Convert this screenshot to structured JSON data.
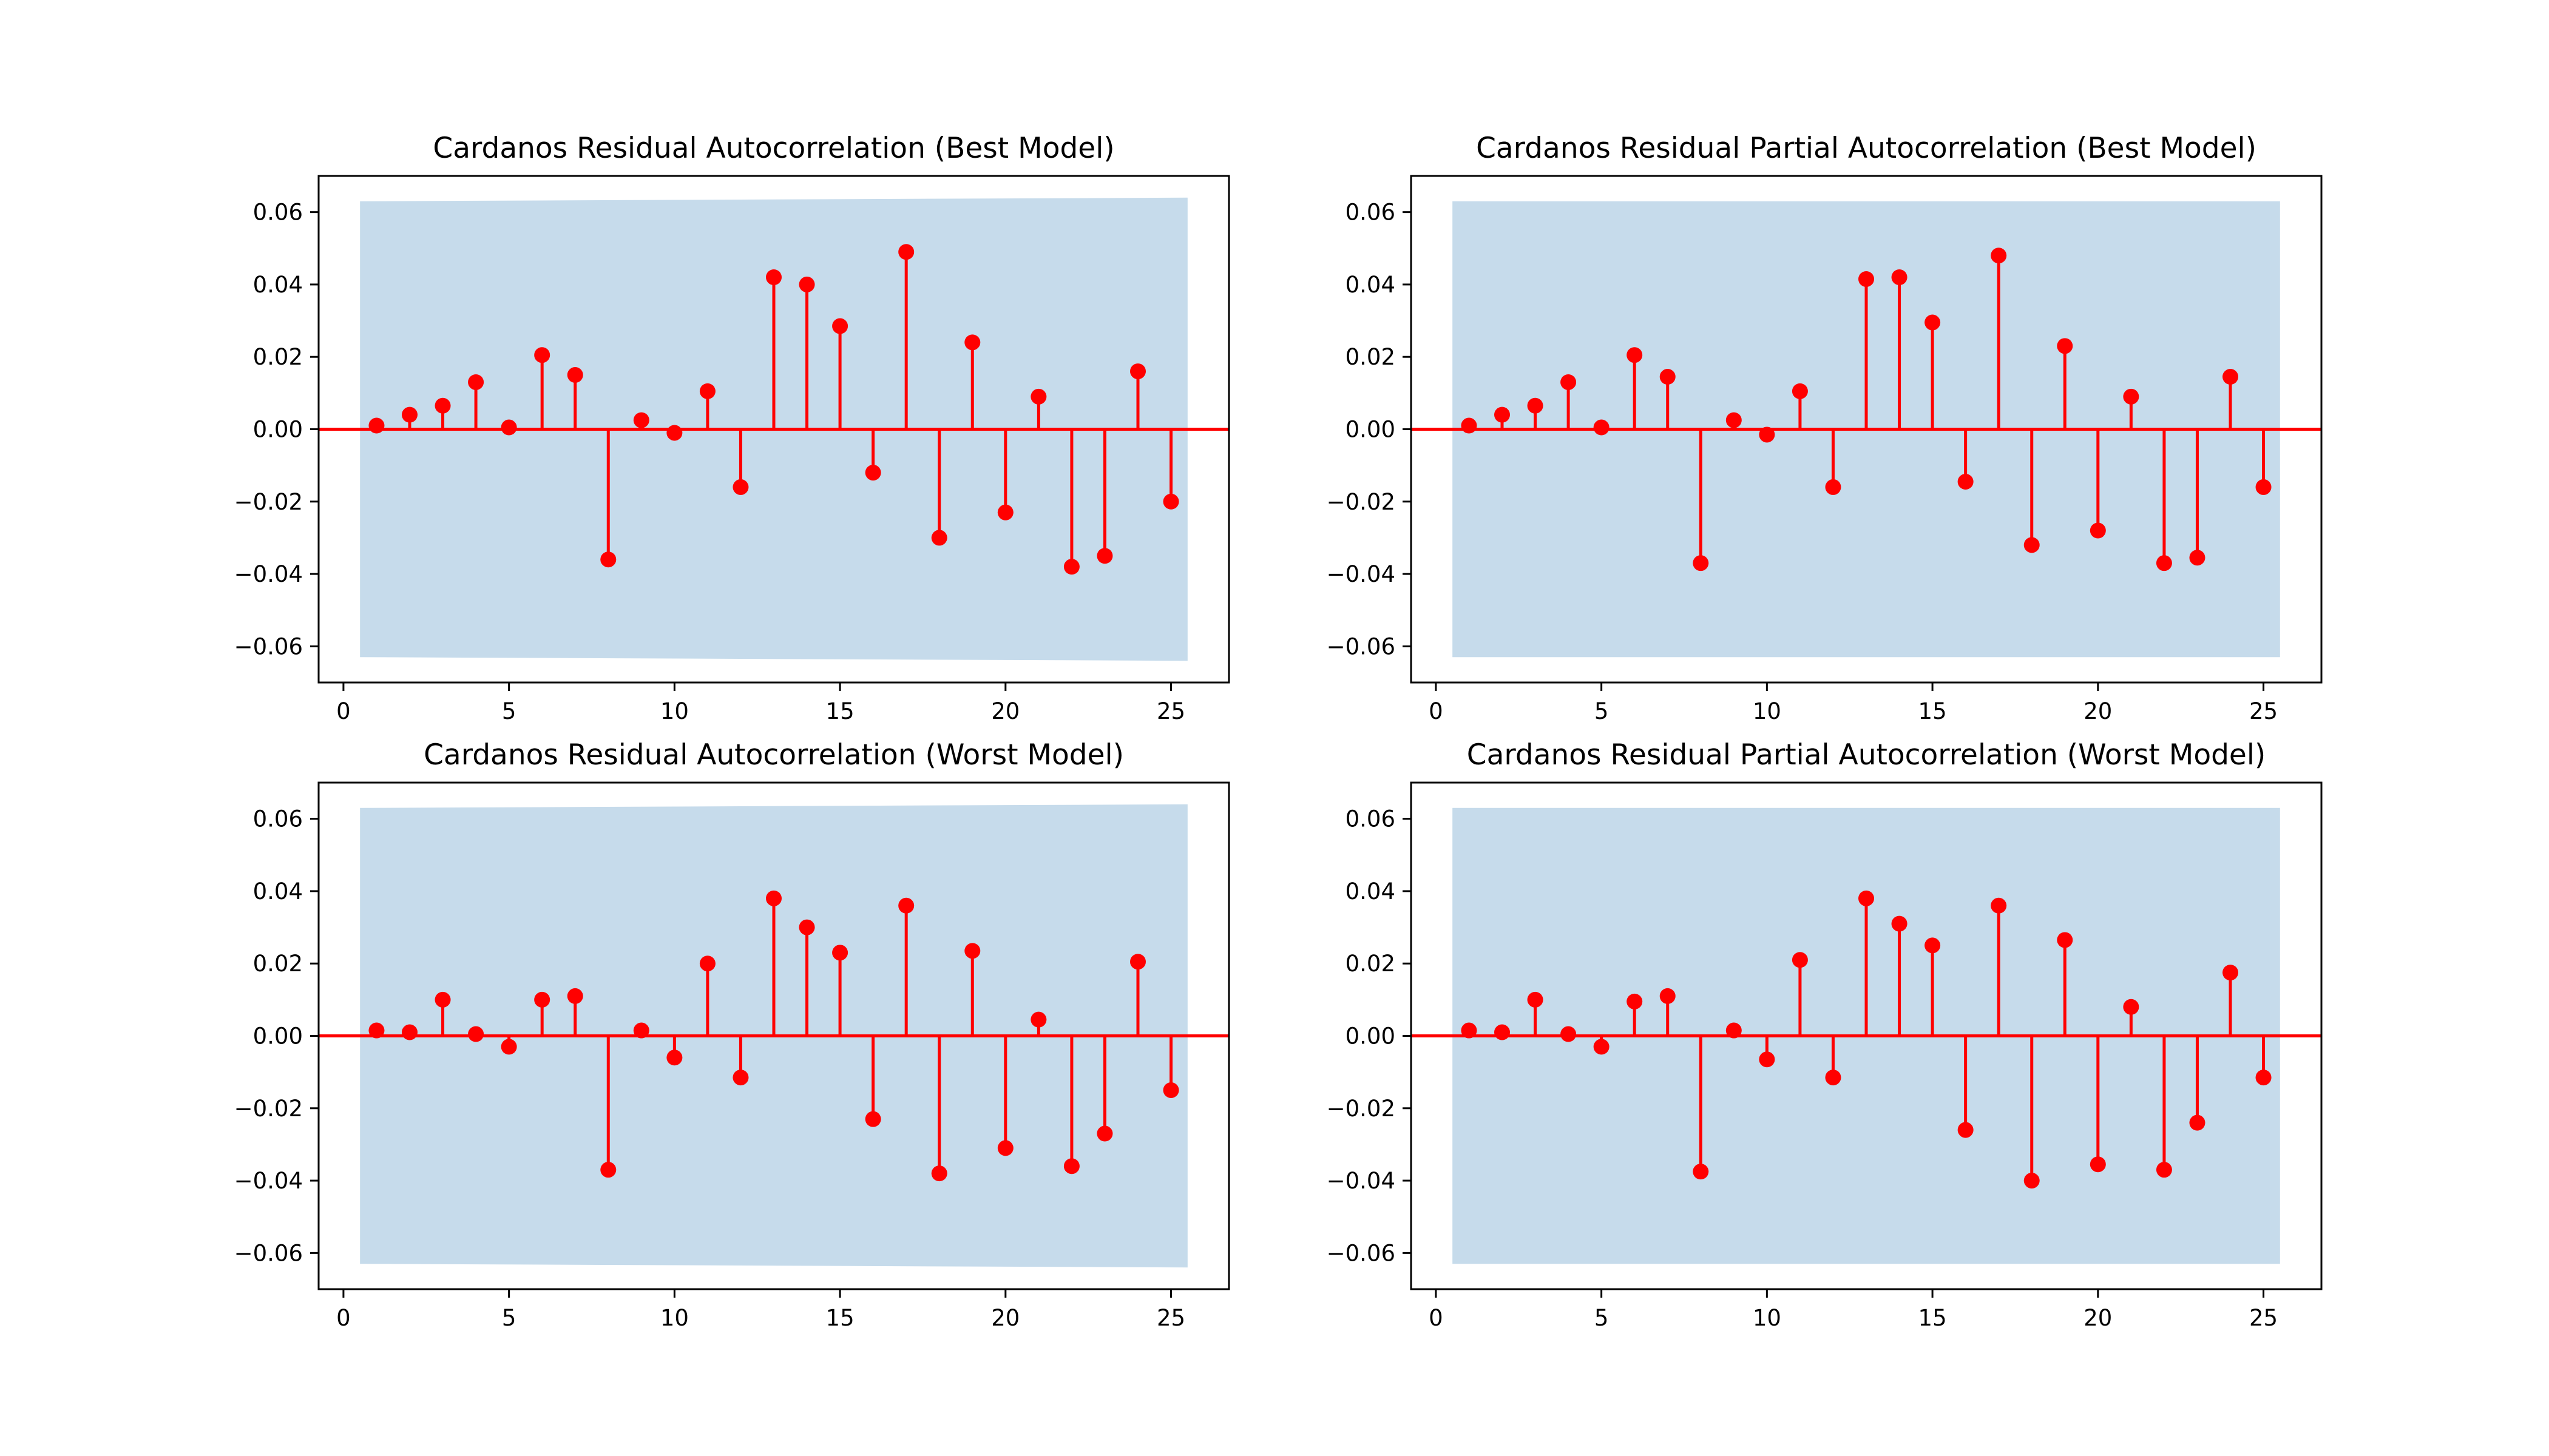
{
  "colors": {
    "stem": "#ff0000",
    "band": "#c6dbeb",
    "axis": "#000000"
  },
  "chart_data": [
    {
      "type": "stem",
      "title": "Cardanos Residual Autocorrelation (Best Model)",
      "xlim": [
        -0.75,
        26.75
      ],
      "ylim": [
        -0.07,
        0.07
      ],
      "xticks": [
        0,
        5,
        10,
        15,
        20,
        25
      ],
      "yticks": [
        0.06,
        0.04,
        0.02,
        0.0,
        -0.02,
        -0.04,
        -0.06
      ],
      "xtick_labels": [
        "0",
        "5",
        "10",
        "15",
        "20",
        "25"
      ],
      "ytick_labels": [
        "0.06",
        "0.04",
        "0.02",
        "0.00",
        "−0.02",
        "−0.04",
        "−0.06"
      ],
      "confidence_band": {
        "x": [
          0.5,
          25.5
        ],
        "lower": [
          -0.063,
          -0.064
        ],
        "upper": [
          0.063,
          0.064
        ]
      },
      "lags": [
        1,
        2,
        3,
        4,
        5,
        6,
        7,
        8,
        9,
        10,
        11,
        12,
        13,
        14,
        15,
        16,
        17,
        18,
        19,
        20,
        21,
        22,
        23,
        24,
        25
      ],
      "values": [
        0.001,
        0.004,
        0.0065,
        0.013,
        0.0005,
        0.0205,
        0.015,
        -0.036,
        0.0025,
        -0.001,
        0.0105,
        -0.016,
        0.042,
        0.04,
        0.0285,
        -0.012,
        0.049,
        -0.03,
        0.024,
        -0.023,
        0.009,
        -0.038,
        -0.035,
        0.016,
        -0.02
      ]
    },
    {
      "type": "stem",
      "title": "Cardanos Residual Partial Autocorrelation (Best Model)",
      "xlim": [
        -0.75,
        26.75
      ],
      "ylim": [
        -0.07,
        0.07
      ],
      "xticks": [
        0,
        5,
        10,
        15,
        20,
        25
      ],
      "yticks": [
        0.06,
        0.04,
        0.02,
        0.0,
        -0.02,
        -0.04,
        -0.06
      ],
      "xtick_labels": [
        "0",
        "5",
        "10",
        "15",
        "20",
        "25"
      ],
      "ytick_labels": [
        "0.06",
        "0.04",
        "0.02",
        "0.00",
        "−0.02",
        "−0.04",
        "−0.06"
      ],
      "confidence_band": {
        "x": [
          0.5,
          25.5
        ],
        "lower": [
          -0.063,
          -0.063
        ],
        "upper": [
          0.063,
          0.063
        ]
      },
      "lags": [
        1,
        2,
        3,
        4,
        5,
        6,
        7,
        8,
        9,
        10,
        11,
        12,
        13,
        14,
        15,
        16,
        17,
        18,
        19,
        20,
        21,
        22,
        23,
        24,
        25
      ],
      "values": [
        0.001,
        0.004,
        0.0065,
        0.013,
        0.0005,
        0.0205,
        0.0145,
        -0.037,
        0.0025,
        -0.0015,
        0.0105,
        -0.016,
        0.0415,
        0.042,
        0.0295,
        -0.0145,
        0.048,
        -0.032,
        0.023,
        -0.028,
        0.009,
        -0.037,
        -0.0355,
        0.0145,
        -0.016
      ]
    },
    {
      "type": "stem",
      "title": "Cardanos Residual Autocorrelation (Worst Model)",
      "xlim": [
        -0.75,
        26.75
      ],
      "ylim": [
        -0.07,
        0.07
      ],
      "xticks": [
        0,
        5,
        10,
        15,
        20,
        25
      ],
      "yticks": [
        0.06,
        0.04,
        0.02,
        0.0,
        -0.02,
        -0.04,
        -0.06
      ],
      "xtick_labels": [
        "0",
        "5",
        "10",
        "15",
        "20",
        "25"
      ],
      "ytick_labels": [
        "0.06",
        "0.04",
        "0.02",
        "0.00",
        "−0.02",
        "−0.04",
        "−0.06"
      ],
      "confidence_band": {
        "x": [
          0.5,
          25.5
        ],
        "lower": [
          -0.063,
          -0.064
        ],
        "upper": [
          0.063,
          0.064
        ]
      },
      "lags": [
        1,
        2,
        3,
        4,
        5,
        6,
        7,
        8,
        9,
        10,
        11,
        12,
        13,
        14,
        15,
        16,
        17,
        18,
        19,
        20,
        21,
        22,
        23,
        24,
        25
      ],
      "values": [
        0.0015,
        0.001,
        0.01,
        0.0005,
        -0.003,
        0.01,
        0.011,
        -0.037,
        0.0015,
        -0.006,
        0.02,
        -0.0115,
        0.038,
        0.03,
        0.023,
        -0.023,
        0.036,
        -0.038,
        0.0235,
        -0.031,
        0.0045,
        -0.036,
        -0.027,
        0.0205,
        -0.015
      ]
    },
    {
      "type": "stem",
      "title": "Cardanos Residual Partial Autocorrelation (Worst Model)",
      "xlim": [
        -0.75,
        26.75
      ],
      "ylim": [
        -0.07,
        0.07
      ],
      "xticks": [
        0,
        5,
        10,
        15,
        20,
        25
      ],
      "yticks": [
        0.06,
        0.04,
        0.02,
        0.0,
        -0.02,
        -0.04,
        -0.06
      ],
      "xtick_labels": [
        "0",
        "5",
        "10",
        "15",
        "20",
        "25"
      ],
      "ytick_labels": [
        "0.06",
        "0.04",
        "0.02",
        "0.00",
        "−0.02",
        "−0.04",
        "−0.06"
      ],
      "confidence_band": {
        "x": [
          0.5,
          25.5
        ],
        "lower": [
          -0.063,
          -0.063
        ],
        "upper": [
          0.063,
          0.063
        ]
      },
      "lags": [
        1,
        2,
        3,
        4,
        5,
        6,
        7,
        8,
        9,
        10,
        11,
        12,
        13,
        14,
        15,
        16,
        17,
        18,
        19,
        20,
        21,
        22,
        23,
        24,
        25
      ],
      "values": [
        0.0015,
        0.001,
        0.01,
        0.0005,
        -0.003,
        0.0095,
        0.011,
        -0.0375,
        0.0015,
        -0.0065,
        0.021,
        -0.0115,
        0.038,
        0.031,
        0.025,
        -0.026,
        0.036,
        -0.04,
        0.0265,
        -0.0355,
        0.008,
        -0.037,
        -0.024,
        0.0175,
        -0.0115
      ]
    }
  ]
}
